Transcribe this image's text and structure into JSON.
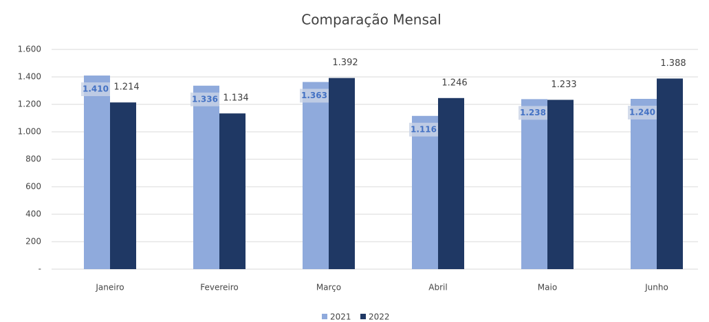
{
  "chart_data": {
    "type": "bar",
    "title": "Comparação Mensal",
    "categories": [
      "Janeiro",
      "Fevereiro",
      "Março",
      "Abril",
      "Maio",
      "Junho"
    ],
    "series": [
      {
        "name": "2021",
        "color": "#8faadc",
        "values": [
          1410,
          1336,
          1363,
          1116,
          1238,
          1240
        ],
        "value_labels": [
          "1.410",
          "1.336",
          "1.363",
          "1.116",
          "1.238",
          "1.240"
        ]
      },
      {
        "name": "2022",
        "color": "#1f3864",
        "values": [
          1214,
          1134,
          1392,
          1246,
          1233,
          1388
        ],
        "value_labels": [
          "1.214",
          "1.134",
          "1.392",
          "1.246",
          "1.233",
          "1.388"
        ]
      }
    ],
    "ylim": [
      0,
      1600
    ],
    "yticks": [
      {
        "value": 0,
        "label": "-"
      },
      200,
      400,
      600,
      800,
      {
        "value": 1000,
        "label": "1.000"
      },
      {
        "value": 1200,
        "label": "1.200"
      },
      {
        "value": 1400,
        "label": "1.400"
      },
      {
        "value": 1600,
        "label": "1.600"
      }
    ],
    "grid": true,
    "legend": "bottom"
  }
}
